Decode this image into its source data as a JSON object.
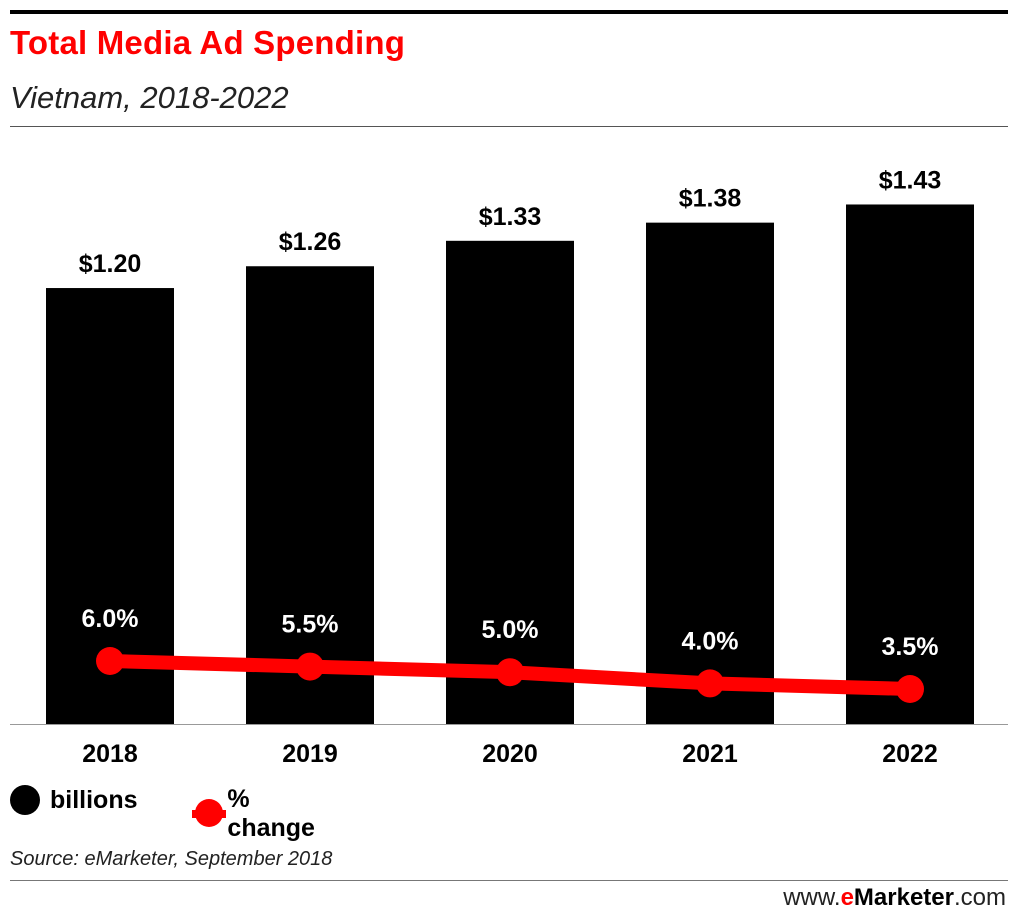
{
  "header": {
    "title": "Total Media Ad Spending",
    "subtitle": "Vietnam, 2018-2022"
  },
  "legend": {
    "billions_label": "billions",
    "change_label": "% change"
  },
  "footer": {
    "source": "Source: eMarketer, September 2018",
    "brand_prefix": "www.",
    "brand_e": "e",
    "brand_name": "Marketer",
    "brand_suffix": ".com"
  },
  "colors": {
    "bar": "#000000",
    "line": "#ff0000",
    "title": "#ff0000"
  },
  "chart_data": {
    "type": "bar",
    "title": "Total Media Ad Spending",
    "subtitle": "Vietnam, 2018-2022",
    "categories": [
      "2018",
      "2019",
      "2020",
      "2021",
      "2022"
    ],
    "series": [
      {
        "name": "billions",
        "type": "bar",
        "values": [
          1.2,
          1.26,
          1.33,
          1.38,
          1.43
        ],
        "labels": [
          "$1.20",
          "$1.26",
          "$1.33",
          "$1.38",
          "$1.43"
        ]
      },
      {
        "name": "% change",
        "type": "line",
        "values": [
          6.0,
          5.5,
          5.0,
          4.0,
          3.5
        ],
        "labels": [
          "6.0%",
          "5.5%",
          "5.0%",
          "4.0%",
          "3.5%"
        ]
      }
    ],
    "ylim": [
      0,
      1.5
    ],
    "grid": false,
    "legend_position": "bottom-left"
  }
}
